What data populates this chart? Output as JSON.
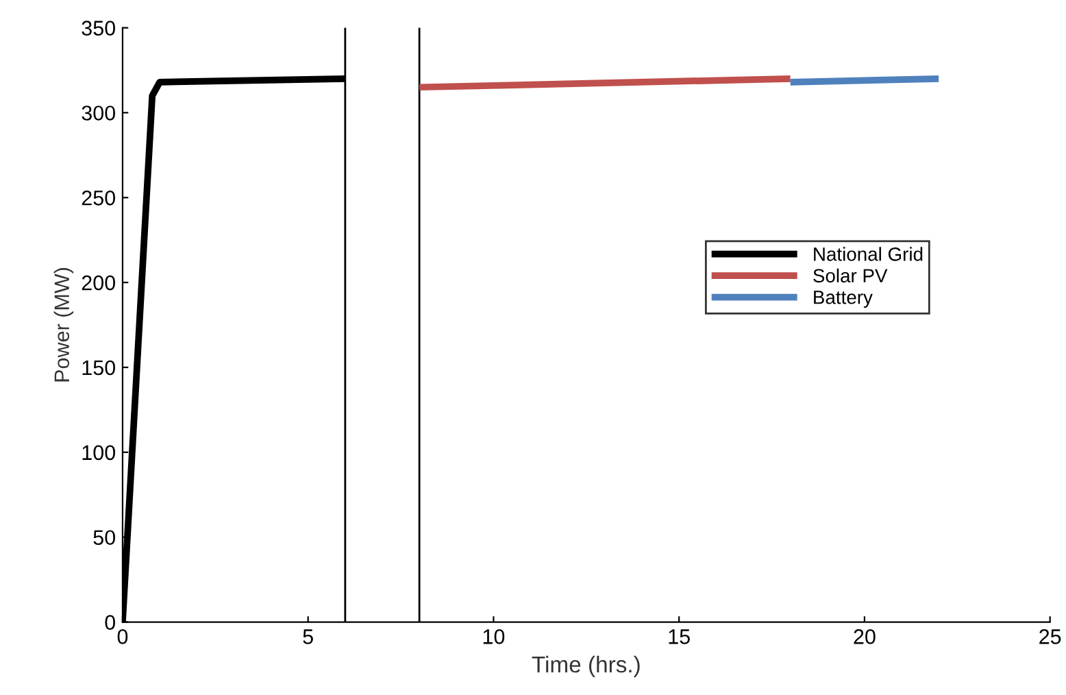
{
  "chart_data": {
    "type": "line",
    "xlabel": "Time (hrs.)",
    "ylabel": "Power (MW)",
    "xlim": [
      0,
      25
    ],
    "ylim": [
      0,
      350
    ],
    "xticks": [
      0,
      5,
      10,
      15,
      20,
      25
    ],
    "yticks": [
      0,
      50,
      100,
      150,
      200,
      250,
      300,
      350
    ],
    "grid": false,
    "legend": "right",
    "marker": "none",
    "line_style": "solid",
    "series": [
      {
        "name": "National Grid",
        "color": "#000000",
        "x": [
          0,
          0.8,
          1,
          6
        ],
        "values": [
          0,
          310,
          318,
          320
        ]
      },
      {
        "name": "Solar PV",
        "color": "#c0504d",
        "x": [
          8,
          18
        ],
        "values": [
          315,
          320
        ]
      },
      {
        "name": "Battery",
        "color": "#4f81bd",
        "x": [
          18,
          22
        ],
        "values": [
          318,
          320
        ]
      }
    ],
    "ref_lines": [
      {
        "axis": "x",
        "value": 6,
        "color": "#000000"
      },
      {
        "axis": "x",
        "value": 8,
        "color": "#000000"
      }
    ]
  }
}
